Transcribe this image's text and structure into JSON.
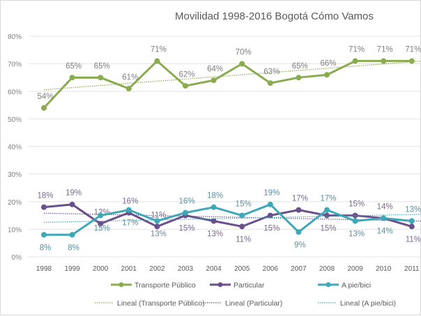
{
  "chart_data": {
    "type": "line",
    "title": "Movilidad 1998-2016 Bogotá Cómo Vamos",
    "x": [
      "1998",
      "1999",
      "2000",
      "2001",
      "2002",
      "2003",
      "2004",
      "2005",
      "2006",
      "2007",
      "2008",
      "2009",
      "2010",
      "2011"
    ],
    "yticks": [
      "0%",
      "10%",
      "20%",
      "30%",
      "40%",
      "50%",
      "60%",
      "70%",
      "80%"
    ],
    "ylim": [
      0,
      80
    ],
    "grid": true,
    "legend_placement": "bottom",
    "series": [
      {
        "name": "Transporte Público",
        "color": "#8aab4f",
        "values": [
          54,
          65,
          65,
          61,
          71,
          62,
          64,
          70,
          63,
          65,
          66,
          71,
          71,
          71
        ]
      },
      {
        "name": "Particular",
        "color": "#6a4f8a",
        "values": [
          18,
          19,
          12,
          16,
          11,
          15,
          13,
          11,
          15,
          17,
          15,
          15,
          14,
          11
        ]
      },
      {
        "name": "A pie/bici",
        "color": "#3fa8b8",
        "values": [
          8,
          8,
          15,
          17,
          13,
          16,
          18,
          15,
          19,
          9,
          17,
          13,
          14,
          13
        ]
      }
    ],
    "trendlines": [
      {
        "name": "Lineal (Transporte Público)",
        "color": "#8aab4f"
      },
      {
        "name": "Lineal (Particular)",
        "color": "#6a4f8a"
      },
      {
        "name": "Lineal (A pie/bici)",
        "color": "#3fa8b8"
      }
    ]
  }
}
